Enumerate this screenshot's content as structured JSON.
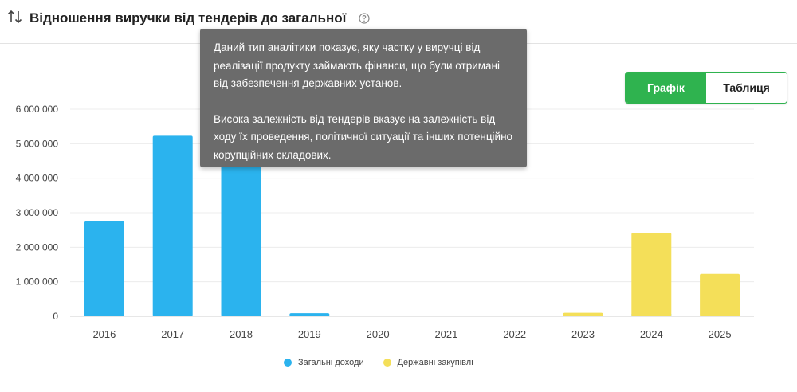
{
  "header": {
    "title": "Відношення виручки від тендерів до загальної",
    "sort_icon": "sort-arrows-icon",
    "help_icon": "question-circle-icon"
  },
  "toggle": {
    "chart_label": "Графік",
    "table_label": "Таблиця",
    "active": "chart"
  },
  "tooltip": {
    "paragraph1": "Даний тип аналітики показує, яку частку у виручці від реалізації продукту займають фінанси, що були отримані від забезпечення державних установ.",
    "paragraph2": "Висока залежність від тендерів вказує на залежність від ходу їх проведення, політичної ситуації та інших потенційно корупційних складових."
  },
  "colors": {
    "accent_green": "#2fb34f",
    "series_total": "#2bb3ee",
    "series_gov": "#f4df59"
  },
  "chart_data": {
    "type": "bar",
    "categories": [
      "2016",
      "2017",
      "2018",
      "2019",
      "2020",
      "2021",
      "2022",
      "2023",
      "2024",
      "2025"
    ],
    "series": [
      {
        "name": "Загальні доходи",
        "color": "#2bb3ee",
        "values": [
          2750000,
          5230000,
          4700000,
          90000,
          0,
          0,
          0,
          90000,
          90000,
          0
        ]
      },
      {
        "name": "Державні закупівлі",
        "color": "#f4df59",
        "values": [
          0,
          0,
          0,
          0,
          0,
          0,
          0,
          100000,
          2420000,
          1230000
        ]
      }
    ],
    "y_ticks": [
      "0",
      "1 000 000",
      "2 000 000",
      "3 000 000",
      "4 000 000",
      "5 000 000",
      "6 000 000"
    ],
    "ylim": [
      0,
      6000000
    ],
    "grid": true,
    "legend_position": "bottom"
  }
}
